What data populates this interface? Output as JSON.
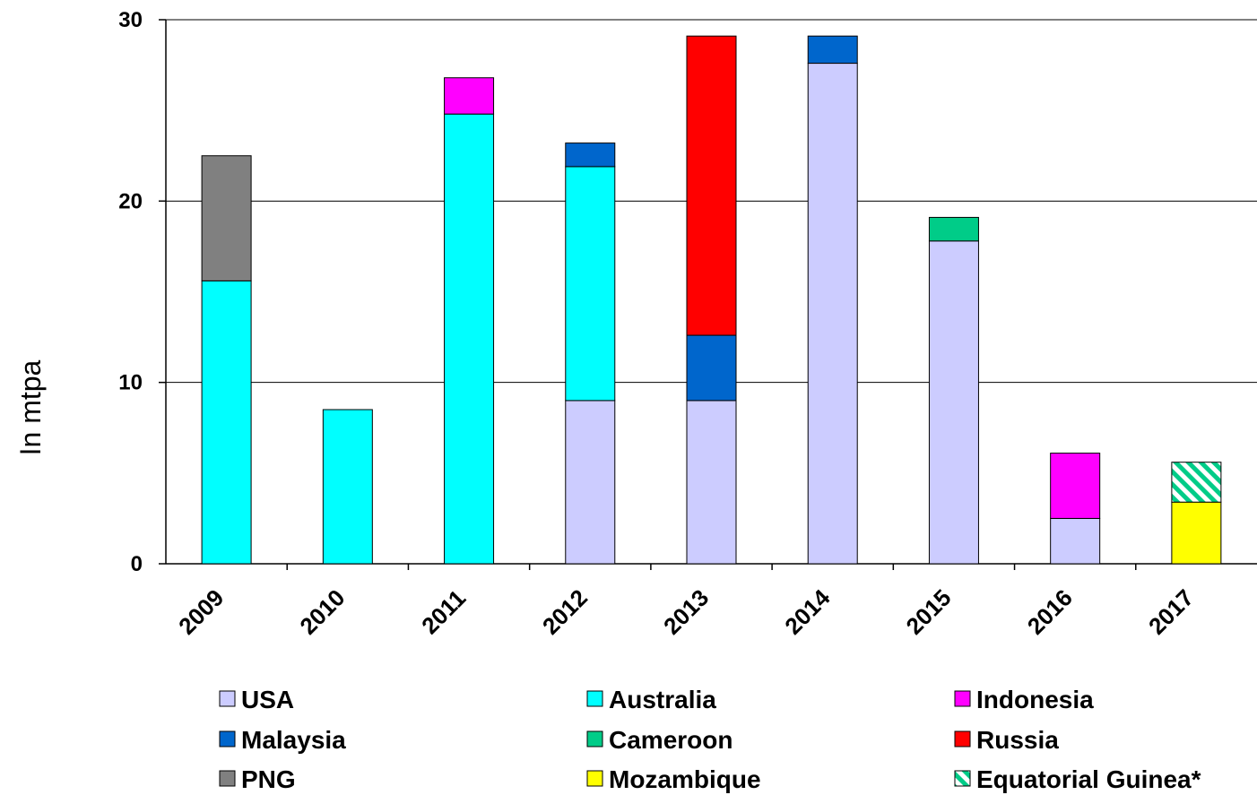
{
  "chart_data": {
    "type": "bar",
    "stacked": true,
    "categories": [
      "2009",
      "2010",
      "2011",
      "2012",
      "2013",
      "2014",
      "2015",
      "2016",
      "2017"
    ],
    "ylabel": "In mtpa",
    "ylim": [
      0,
      30
    ],
    "yticks": [
      0,
      10,
      20,
      30
    ],
    "grid": true,
    "legend_position": "bottom",
    "series": [
      {
        "name": "USA",
        "color": "#ccccff",
        "pattern": "solid",
        "values": [
          0,
          0,
          0,
          9.0,
          9.0,
          27.6,
          17.8,
          2.5,
          0
        ]
      },
      {
        "name": "Australia",
        "color": "#00ffff",
        "pattern": "solid",
        "values": [
          15.6,
          8.5,
          24.8,
          12.9,
          0,
          0,
          0,
          0,
          0
        ]
      },
      {
        "name": "Indonesia",
        "color": "#ff00ff",
        "pattern": "solid",
        "values": [
          0,
          0,
          2.0,
          0,
          0,
          0,
          0,
          3.6,
          0
        ]
      },
      {
        "name": "Malaysia",
        "color": "#0066cc",
        "pattern": "solid",
        "values": [
          0,
          0,
          0,
          1.3,
          3.6,
          1.5,
          0,
          0,
          0
        ]
      },
      {
        "name": "Cameroon",
        "color": "#00cc88",
        "pattern": "solid",
        "values": [
          0,
          0,
          0,
          0,
          0,
          0,
          1.3,
          0,
          0
        ]
      },
      {
        "name": "Russia",
        "color": "#ff0000",
        "pattern": "solid",
        "values": [
          0,
          0,
          0,
          0,
          16.5,
          0,
          0,
          0,
          0
        ]
      },
      {
        "name": "PNG",
        "color": "#808080",
        "pattern": "solid",
        "values": [
          6.9,
          0,
          0,
          0,
          0,
          0,
          0,
          0,
          0
        ]
      },
      {
        "name": "Mozambique",
        "color": "#ffff00",
        "pattern": "solid",
        "values": [
          0,
          0,
          0,
          0,
          0,
          0,
          0,
          0,
          3.4
        ]
      },
      {
        "name": "Equatorial Guinea*",
        "color": "#00cc88",
        "pattern": "hatch",
        "values": [
          0,
          0,
          0,
          0,
          0,
          0,
          0,
          0,
          2.2
        ]
      }
    ],
    "legend": [
      [
        "USA",
        "Australia",
        "Indonesia"
      ],
      [
        "Malaysia",
        "Cameroon",
        "Russia"
      ],
      [
        "PNG",
        "Mozambique",
        "Equatorial Guinea*"
      ]
    ]
  }
}
